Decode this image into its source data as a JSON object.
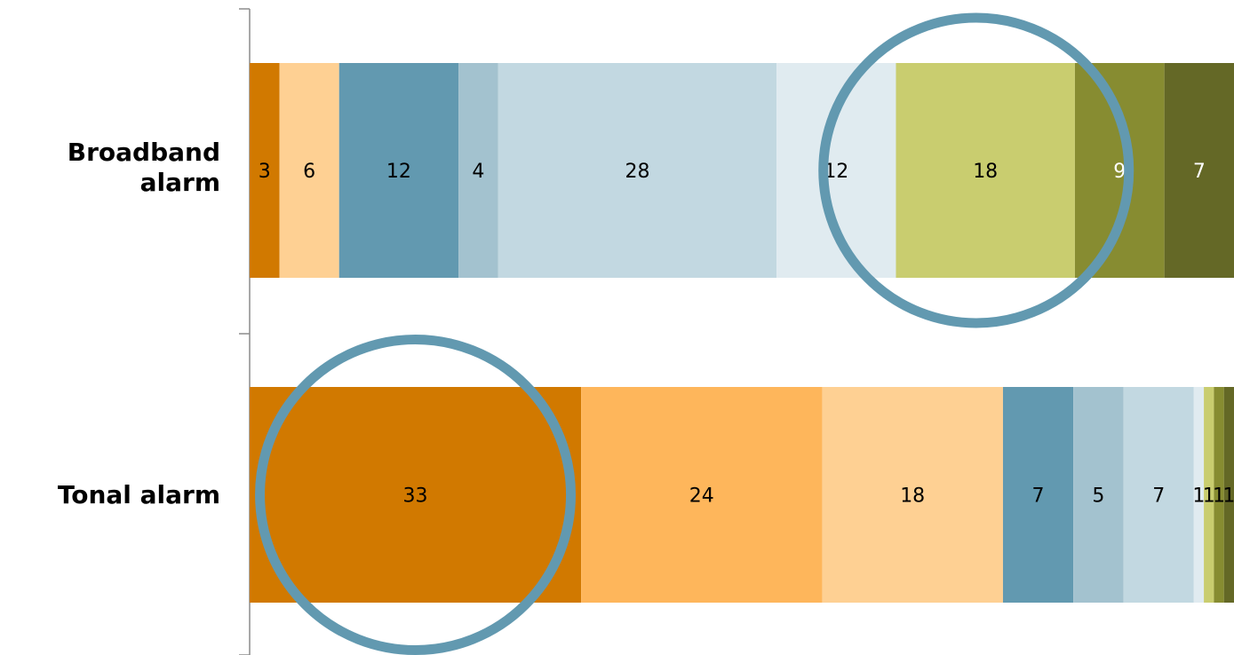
{
  "chart_data": {
    "type": "bar",
    "orientation": "horizontal",
    "stacked": "percent",
    "categories": [
      "Broadband alarm",
      "Tonal alarm"
    ],
    "category_lines": [
      [
        "Broadband",
        "alarm"
      ],
      [
        "Tonal alarm"
      ]
    ],
    "values": [
      [
        3,
        6,
        12,
        4,
        28,
        12,
        18,
        9,
        7
      ],
      [
        33,
        24,
        18,
        7,
        5,
        7,
        1,
        1,
        1,
        1
      ]
    ],
    "segment_colors": [
      [
        "#d17900",
        "#fed093",
        "#6299b0",
        "#a3c2cf",
        "#c2d8e1",
        "#e0ebf0",
        "#c9cd6f",
        "#878c31",
        "#646826"
      ],
      [
        "#d17900",
        "#feb65b",
        "#fed093",
        "#6299b0",
        "#a3c2cf",
        "#c2d8e1",
        "#e0ebf0",
        "#c9cd6f",
        "#878c31",
        "#646826"
      ]
    ],
    "label_colors": [
      [
        "#000000",
        "#000000",
        "#000000",
        "#000000",
        "#000000",
        "#000000",
        "#000000",
        "#ffffff",
        "#ffffff"
      ],
      [
        "#000000",
        "#000000",
        "#000000",
        "#000000",
        "#000000",
        "#000000",
        "#000000",
        "#000000",
        "#000000",
        "#000000"
      ]
    ],
    "highlights": [
      {
        "category": "Broadband alarm",
        "segments": [
          6,
          7,
          8
        ]
      },
      {
        "category": "Tonal alarm",
        "segments": [
          0
        ]
      }
    ],
    "highlight_color": "#6299b0",
    "grid": false,
    "legend": "none"
  }
}
